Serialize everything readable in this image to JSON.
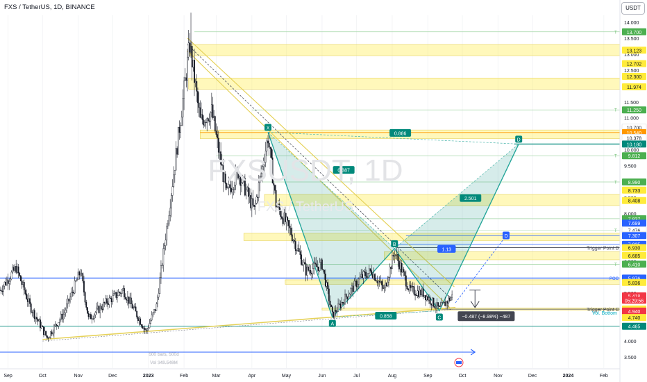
{
  "header": {
    "title": "FXS / TetherUS, 1D, BINANCE",
    "currency": "USDT",
    "watermark_symbol": "FXSUSDT, 1D",
    "watermark_name": "FXS / TetherUS"
  },
  "chart_data": {
    "type": "candlestick",
    "symbol": "FXS / TetherUS",
    "interval": "1D",
    "exchange": "BINANCE",
    "ylim": [
      3.5,
      14.0
    ],
    "y_ticks": [
      14.0,
      13.5,
      13.0,
      12.5,
      12.0,
      11.5,
      11.0,
      10.5,
      10.0,
      9.5,
      9.0,
      8.5,
      8.0,
      7.5,
      7.0,
      6.5,
      6.0,
      5.5,
      5.0,
      4.5,
      4.0,
      3.5
    ],
    "y_tick_labels": [
      "14.000",
      "13.500",
      "13.000",
      "12.500",
      "12.000",
      "11.500",
      "11.000",
      "10.500",
      "10.000",
      "9.500",
      "9.000",
      "8.500",
      "8.000",
      "7.500",
      "7.000",
      "6.500",
      "6.000",
      "5.500",
      "5.000",
      "4.500",
      "4.000",
      "3.500"
    ],
    "x_axis_labels": [
      "Sep",
      "Oct",
      "Nov",
      "Dec",
      "2023",
      "Feb",
      "Mar",
      "Apr",
      "May",
      "Jun",
      "Jul",
      "Aug",
      "Sep",
      "Oct",
      "Nov",
      "Dec",
      "2024",
      "Feb"
    ],
    "price_labels": [
      {
        "text": "13.700",
        "value": 13.7,
        "color": "#4caf50"
      },
      {
        "text": "13.123",
        "value": 13.123,
        "color": "#ffeb3b"
      },
      {
        "text": "12.702",
        "value": 12.702,
        "color": "#ffeb3b"
      },
      {
        "text": "12.300",
        "value": 12.3,
        "color": "#ffeb3b"
      },
      {
        "text": "11.974",
        "value": 11.974,
        "color": "#ffeb3b"
      },
      {
        "text": "11.250",
        "value": 11.25,
        "color": "#4caf50"
      },
      {
        "text": "10.700",
        "value": 10.7,
        "color": "#ffffff"
      },
      {
        "text": "10.540",
        "value": 10.54,
        "color": "#ff9800"
      },
      {
        "text": "10.378",
        "value": 10.378,
        "color": "#ffffff"
      },
      {
        "text": "10.180",
        "value": 10.18,
        "color": "#00897b"
      },
      {
        "text": "9.812",
        "value": 9.812,
        "color": "#4caf50"
      },
      {
        "text": "8.990",
        "value": 8.99,
        "color": "#4caf50"
      },
      {
        "text": "8.733",
        "value": 8.733,
        "color": "#ffeb3b"
      },
      {
        "text": "8.408",
        "value": 8.408,
        "color": "#ffeb3b"
      },
      {
        "text": "7.837",
        "value": 7.837,
        "color": "#4caf50"
      },
      {
        "text": "7.699",
        "value": 7.699,
        "color": "#2962ff"
      },
      {
        "text": "7.476",
        "value": 7.476,
        "color": "#ffffff"
      },
      {
        "text": "7.326",
        "value": 7.326,
        "color": "#ffffff"
      },
      {
        "text": "7.307",
        "value": 7.307,
        "color": "#2962ff"
      },
      {
        "text": "7.035",
        "value": 7.035,
        "color": "#2962ff"
      },
      {
        "text": "6.930",
        "value": 6.93,
        "color": "#ffeb3b"
      },
      {
        "text": "6.685",
        "value": 6.685,
        "color": "#ffeb3b"
      },
      {
        "text": "6.410",
        "value": 6.41,
        "color": "#4caf50"
      },
      {
        "text": "5.976",
        "value": 5.976,
        "color": "#2962ff"
      },
      {
        "text": "5.836",
        "value": 5.836,
        "color": "#ffeb3b"
      },
      {
        "text": "5.418",
        "value": 5.418,
        "color": "#f23645"
      },
      {
        "text": "05:29:56",
        "value": 5.28,
        "color": "#f23645"
      },
      {
        "text": "5.006",
        "value": 5.006,
        "color": "#ffeb3b"
      },
      {
        "text": "4.940",
        "value": 4.94,
        "color": "#f23645"
      },
      {
        "text": "4.740",
        "value": 4.74,
        "color": "#ffeb3b"
      },
      {
        "text": "4.465",
        "value": 4.465,
        "color": "#00897b"
      }
    ],
    "zones": [
      {
        "from": 12.95,
        "to": 13.3,
        "x_start": "2023-02-05"
      },
      {
        "from": 11.9,
        "to": 12.25,
        "x_start": "2023-02-05"
      },
      {
        "from": 10.35,
        "to": 10.62,
        "x_start": "2023-02-15"
      },
      {
        "from": 8.25,
        "to": 8.6,
        "x_start": "2023-04-12"
      },
      {
        "from": 7.15,
        "to": 7.38,
        "x_start": "2023-03-25"
      },
      {
        "from": 6.55,
        "to": 6.8,
        "x_start": "2023-07-25"
      },
      {
        "from": 5.78,
        "to": 5.92,
        "x_start": "2023-04-30"
      },
      {
        "from": 4.97,
        "to": 5.04,
        "x_start": "2023-06-01"
      }
    ],
    "harmonic_pattern": {
      "points": [
        {
          "label": "X",
          "date": "2023-04-15",
          "price": 10.55
        },
        {
          "label": "A",
          "date": "2023-06-10",
          "price": 4.75
        },
        {
          "label": "B",
          "date": "2023-08-03",
          "price": 6.9
        },
        {
          "label": "C",
          "date": "2023-09-11",
          "price": 4.95
        },
        {
          "label": "D",
          "date": "2023-11-19",
          "price": 10.18
        }
      ],
      "ratios": [
        {
          "text": "0.387"
        },
        {
          "text": "0.858"
        },
        {
          "text": "2.501"
        },
        {
          "text": "0.886"
        },
        {
          "text": "1.13"
        }
      ]
    },
    "annotations": [
      {
        "text": "Trigger Point B",
        "value": 6.93
      },
      {
        "text": "Trigger Point C",
        "value": 5.0
      },
      {
        "text": "Vol. Bottom",
        "value": 4.74
      },
      {
        "text": "POC",
        "value": 5.98
      },
      {
        "text": "T",
        "value": 13.7
      },
      {
        "text": "D",
        "value": 7.3
      },
      {
        "text": "−0.487 (−8.98%) −487",
        "value": 4.78
      },
      {
        "text": "500 bars, 500d"
      },
      {
        "text": "Vol 349.548M"
      }
    ]
  }
}
